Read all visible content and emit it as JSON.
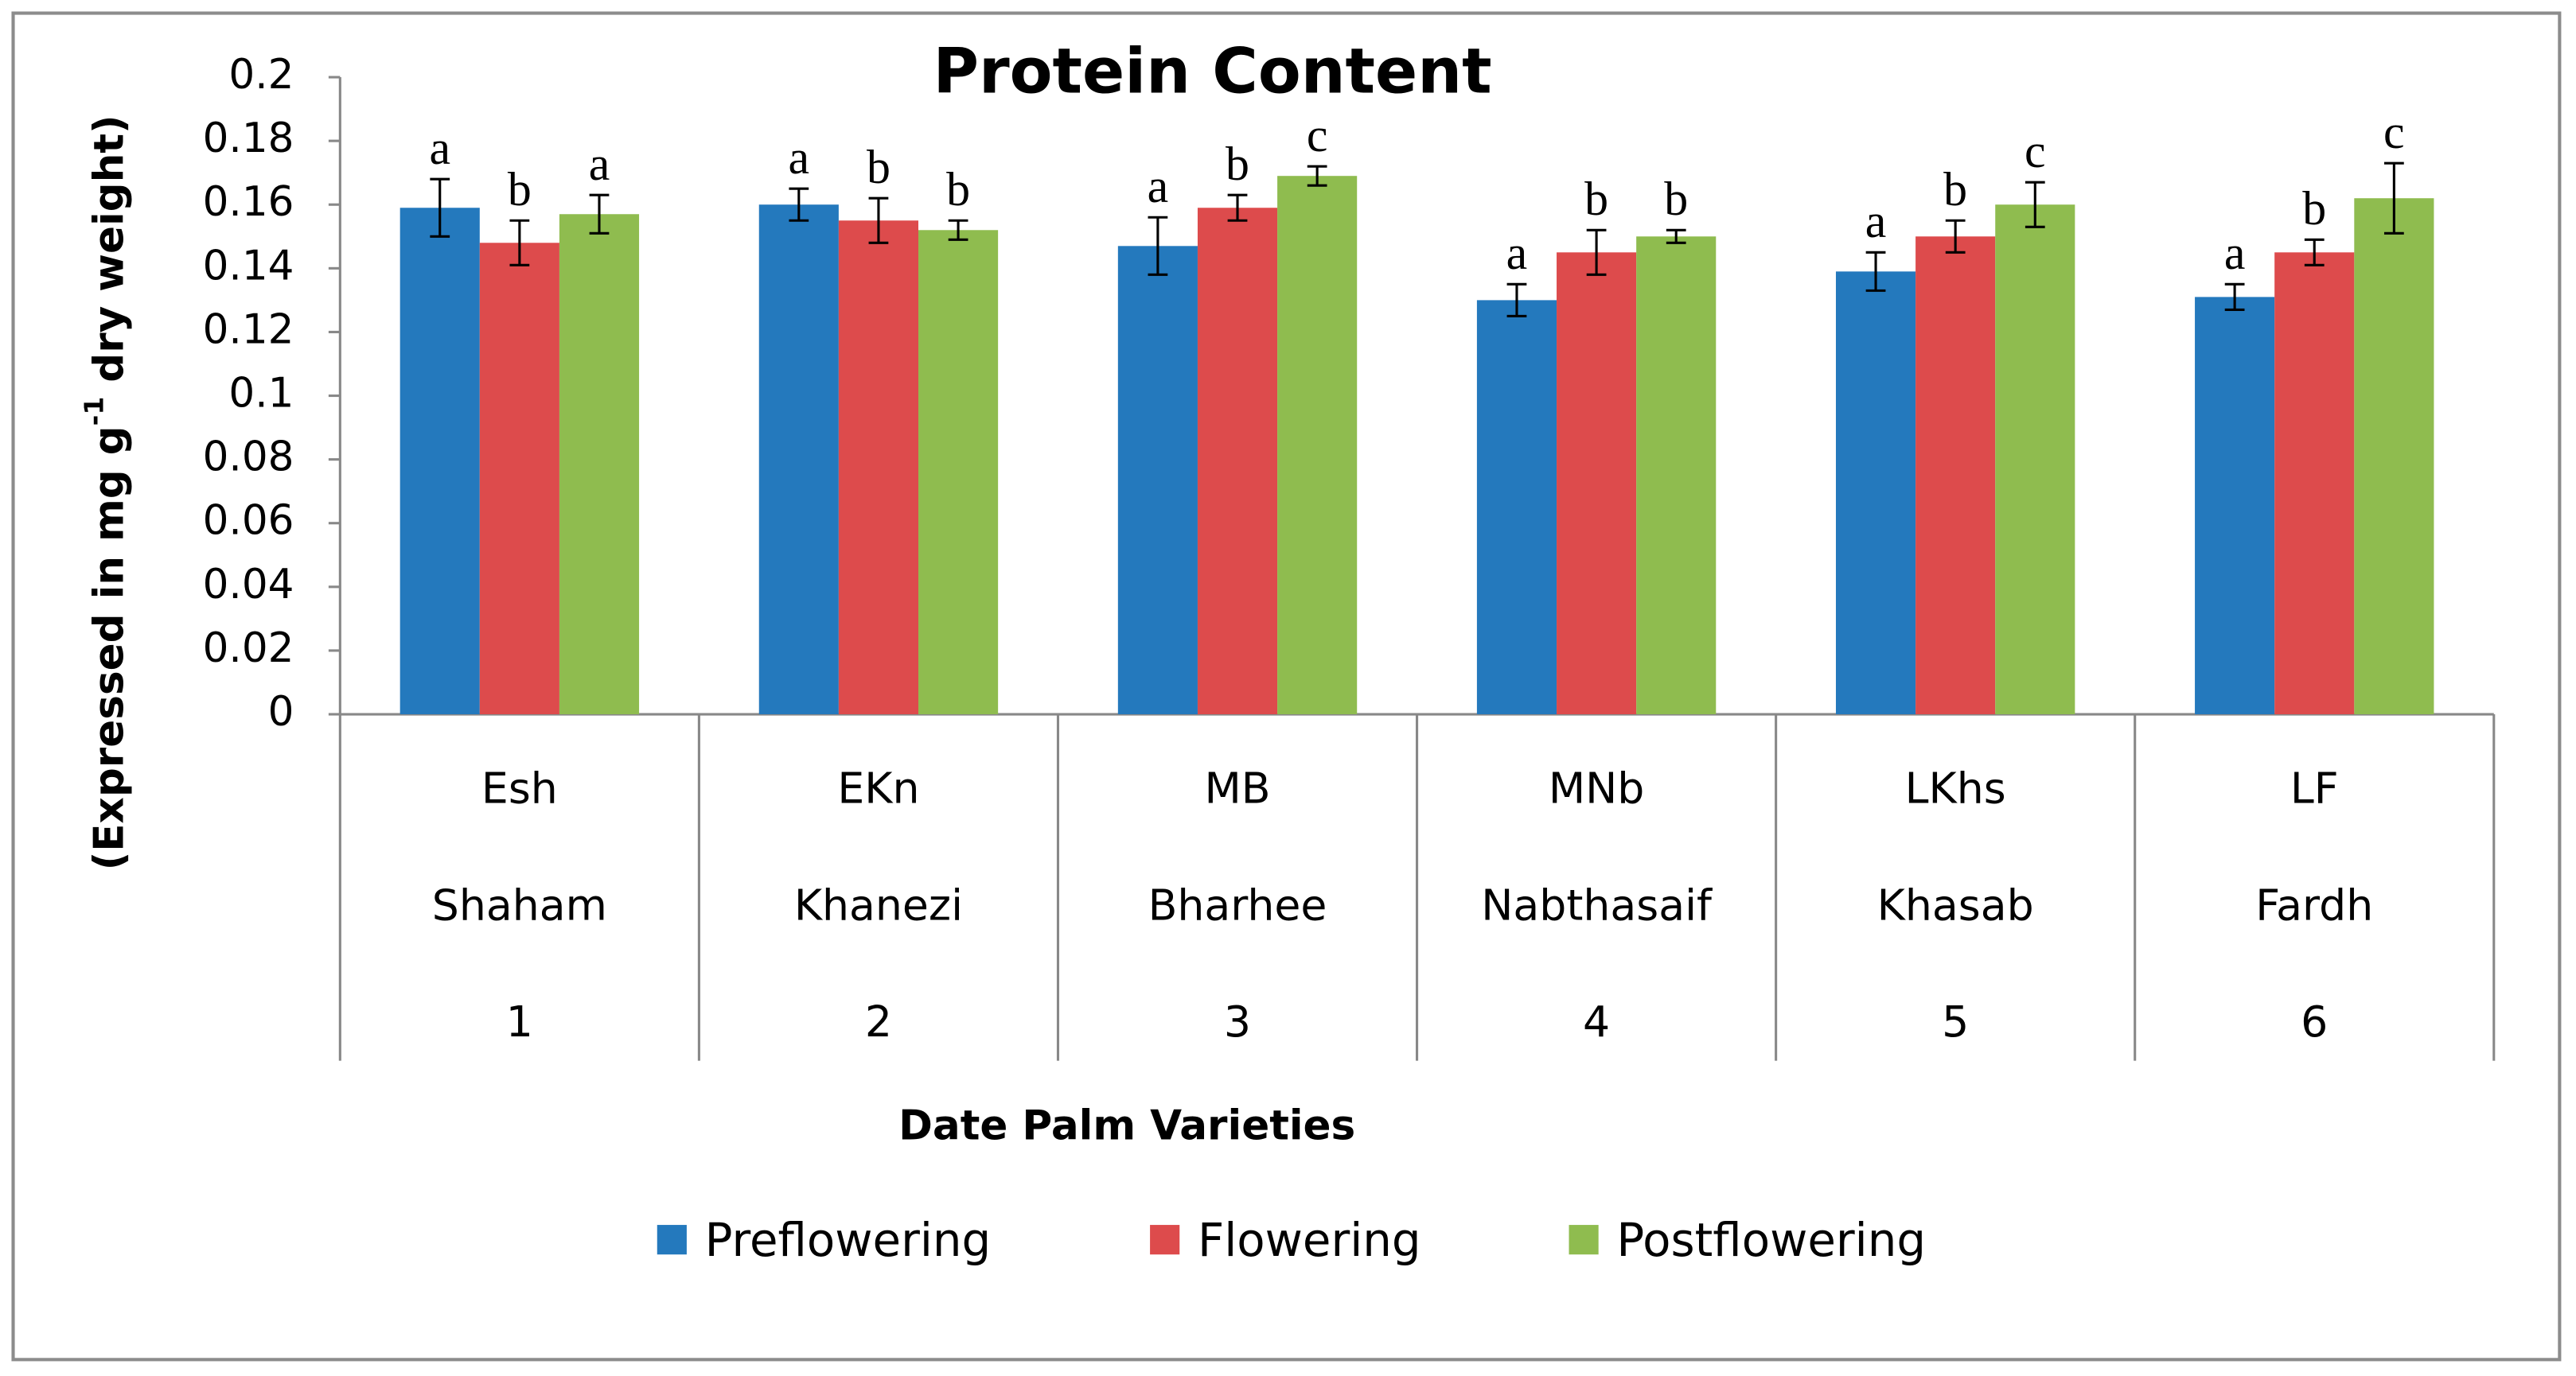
{
  "chart_data": {
    "type": "bar",
    "title": "Protein Content",
    "ylabel_parts": [
      "(Expressed in mg g",
      "-1",
      " dry weight)"
    ],
    "xlabel": "Date Palm Varieties",
    "categories": [
      {
        "code": "Esh",
        "name": "Shaham",
        "number": 1
      },
      {
        "code": "EKn",
        "name": "Khanezi",
        "number": 2
      },
      {
        "code": "MB",
        "name": "Bharhee",
        "number": 3
      },
      {
        "code": "MNb",
        "name": "Nabthasaif",
        "number": 4
      },
      {
        "code": "LKhs",
        "name": "Khasab",
        "number": 5
      },
      {
        "code": "LF",
        "name": "Fardh",
        "number": 6
      }
    ],
    "series": [
      {
        "name": "Preflowering",
        "color": "#2479bd",
        "values": [
          0.159,
          0.16,
          0.147,
          0.13,
          0.139,
          0.131
        ],
        "errors": [
          0.009,
          0.005,
          0.009,
          0.005,
          0.006,
          0.004
        ],
        "letters": [
          "a",
          "a",
          "a",
          "a",
          "a",
          "a"
        ]
      },
      {
        "name": "Flowering",
        "color": "#dd4b4c",
        "values": [
          0.148,
          0.155,
          0.159,
          0.145,
          0.15,
          0.145
        ],
        "errors": [
          0.007,
          0.007,
          0.004,
          0.007,
          0.005,
          0.004
        ],
        "letters": [
          "b",
          "b",
          "b",
          "b",
          "b",
          "b"
        ]
      },
      {
        "name": "Postflowering",
        "color": "#8fbc4f",
        "values": [
          0.157,
          0.152,
          0.169,
          0.15,
          0.16,
          0.162
        ],
        "errors": [
          0.006,
          0.003,
          0.003,
          0.002,
          0.007,
          0.011
        ],
        "letters": [
          "a",
          "b",
          "c",
          "b",
          "c",
          "c"
        ]
      }
    ],
    "ylim": [
      0,
      0.2
    ],
    "yticks": [
      0,
      0.02,
      0.04,
      0.06,
      0.08,
      0.1,
      0.12,
      0.14,
      0.16,
      0.18,
      0.2
    ],
    "grid": false,
    "legend": "bottom"
  }
}
